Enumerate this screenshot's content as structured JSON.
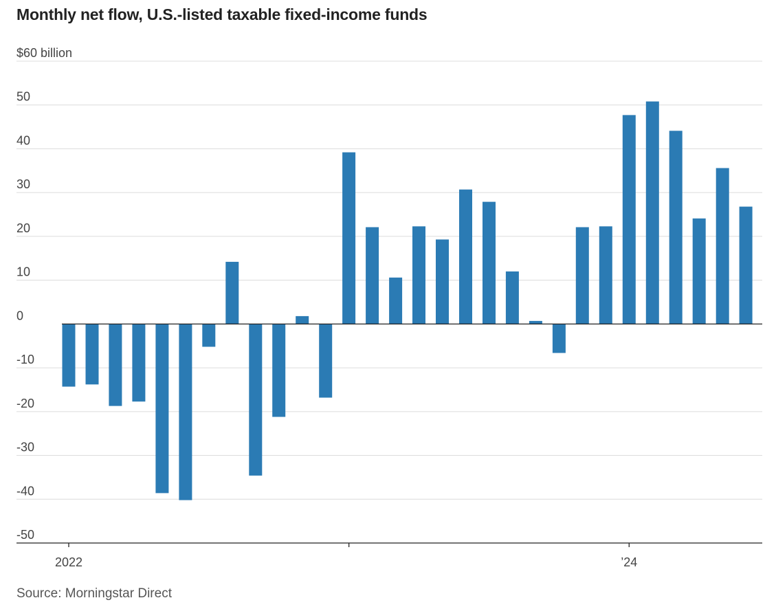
{
  "chart_data": {
    "type": "bar",
    "title": "Monthly net flow, U.S.-listed taxable fixed-income funds",
    "source": "Source: Morningstar Direct",
    "y_top_label": "$60 billion",
    "ylim": [
      -50,
      60
    ],
    "y_ticks": [
      60,
      50,
      40,
      30,
      20,
      10,
      0,
      -10,
      -20,
      -30,
      -40,
      -50
    ],
    "y_tick_labels": [
      "$60 billion",
      "50",
      "40",
      "30",
      "20",
      "10",
      "0",
      "-10",
      "-20",
      "-30",
      "-40",
      "-50"
    ],
    "x_tick_labels": [
      "2022",
      "",
      "’24"
    ],
    "x_tick_months": [
      0,
      12,
      24
    ],
    "grid": true,
    "bar_color": "#2b7bb4",
    "categories": [
      "2022-01",
      "2022-02",
      "2022-03",
      "2022-04",
      "2022-05",
      "2022-06",
      "2022-07",
      "2022-08",
      "2022-09",
      "2022-10",
      "2022-11",
      "2022-12",
      "2023-01",
      "2023-02",
      "2023-03",
      "2023-04",
      "2023-05",
      "2023-06",
      "2023-07",
      "2023-08",
      "2023-09",
      "2023-10",
      "2023-11",
      "2023-12",
      "2024-01",
      "2024-02",
      "2024-03",
      "2024-04",
      "2024-05",
      "2024-06",
      "2024-07"
    ],
    "values": [
      -14.3,
      -13.8,
      -18.7,
      -17.7,
      -38.6,
      -40.2,
      -5.2,
      14.2,
      -34.6,
      -21.2,
      1.8,
      -16.8,
      39.2,
      22.1,
      10.6,
      22.3,
      19.3,
      30.7,
      27.9,
      12.0,
      0.7,
      -6.6,
      22.1,
      22.3,
      47.7,
      50.8,
      44.1,
      24.1,
      35.6,
      26.8,
      null
    ]
  }
}
